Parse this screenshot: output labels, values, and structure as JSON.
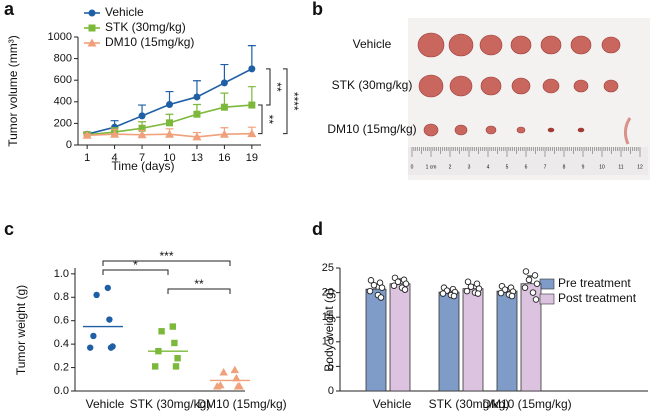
{
  "chart_data": [
    {
      "type": "line",
      "panel": "a",
      "xlabel": "Time (days)",
      "ylabel": "Tumor volume (mm³)",
      "x": [
        1,
        4,
        7,
        10,
        13,
        16,
        19
      ],
      "xlim": [
        0,
        20
      ],
      "xticks": [
        1,
        4,
        7,
        10,
        13,
        16,
        19
      ],
      "ylim": [
        0,
        1000
      ],
      "yticks": [
        0,
        200,
        400,
        600,
        800,
        1000
      ],
      "series": [
        {
          "name": "Vehicle",
          "color": "#1f5fa6",
          "marker": "circle",
          "values": [
            100,
            165,
            270,
            375,
            445,
            575,
            705
          ],
          "errors": [
            20,
            60,
            100,
            120,
            150,
            170,
            215
          ]
        },
        {
          "name": "STK (30mg/kg)",
          "color": "#7cb83a",
          "marker": "square",
          "values": [
            95,
            120,
            155,
            205,
            285,
            350,
            370
          ],
          "errors": [
            15,
            40,
            60,
            80,
            90,
            130,
            170
          ]
        },
        {
          "name": "DM10 (15mg/kg)",
          "color": "#f0a07a",
          "marker": "triangle",
          "values": [
            90,
            100,
            95,
            100,
            75,
            100,
            105
          ],
          "errors": [
            10,
            45,
            40,
            50,
            40,
            60,
            60
          ]
        }
      ],
      "annotations": [
        "**",
        "****",
        "**"
      ]
    },
    {
      "type": "image",
      "panel": "b",
      "labels": [
        "Vehicle",
        "STK (30mg/kg)",
        "DM10 (15mg/kg)"
      ],
      "ruler_labels": [
        "0",
        "1 cm",
        "2",
        "3",
        "4",
        "5",
        "6",
        "7",
        "8",
        "9",
        "10",
        "11",
        "12"
      ]
    },
    {
      "type": "strip",
      "panel": "c",
      "ylabel": "Tumor weight (g)",
      "categories": [
        "Vehicle",
        "STK (30mg/kg)",
        "DM10 (15mg/kg)"
      ],
      "ylim": [
        0,
        1.05
      ],
      "yticks": [
        {
          "value": 0,
          "label": "0.0"
        },
        0.2,
        0.4,
        0.6,
        0.8,
        {
          "value": 1,
          "label": "1.0"
        }
      ],
      "series": [
        {
          "name": "Vehicle",
          "color": "#1f5fa6",
          "marker": "circle",
          "values": [
            0.88,
            0.82,
            0.61,
            0.47,
            0.38,
            0.37,
            0.37
          ],
          "mean": 0.55
        },
        {
          "name": "STK (30mg/kg)",
          "color": "#7cb83a",
          "marker": "square",
          "values": [
            0.55,
            0.51,
            0.41,
            0.34,
            0.28,
            0.21,
            0.21
          ],
          "mean": 0.34
        },
        {
          "name": "DM10 (15mg/kg)",
          "color": "#f0a07a",
          "marker": "triangle",
          "values": [
            0.18,
            0.16,
            0.11,
            0.05,
            0.04,
            0.04,
            0.04
          ],
          "mean": 0.09
        }
      ],
      "annotations": [
        "***",
        "*",
        "**"
      ]
    },
    {
      "type": "bar",
      "panel": "d",
      "ylabel": "Body weight (g)",
      "categories": [
        "Vehicle",
        "STK (30mg/kg)",
        "DM10 (15mg/kg)"
      ],
      "ylim": [
        0,
        25
      ],
      "yticks": [
        0,
        5,
        10,
        15,
        20,
        25
      ],
      "legend": "top-right",
      "series": [
        {
          "name": "Pre treatment",
          "color": "#7f9cc9",
          "values": [
            20.7,
            20.1,
            20.3
          ],
          "errors": [
            1.0,
            0.6,
            0.7
          ],
          "points": [
            [
              22.5,
              22,
              21.5,
              21,
              20.3,
              19.5,
              19
            ],
            [
              21,
              20.7,
              20.4,
              20.1,
              19.8,
              19.5,
              19.3
            ],
            [
              21.3,
              21,
              20.6,
              20.2,
              19.9,
              19.6,
              19.3
            ]
          ]
        },
        {
          "name": "Post treatment",
          "color": "#dcc3e0",
          "values": [
            21.8,
            20.8,
            21.8
          ],
          "errors": [
            1.0,
            0.8,
            1.6
          ],
          "points": [
            [
              23,
              22.6,
              22.2,
              21.8,
              21.4,
              21,
              20.6
            ],
            [
              22.2,
              21.8,
              21.2,
              20.8,
              20.3,
              20,
              19.8
            ],
            [
              24.3,
              23.5,
              22.6,
              21.8,
              21,
              20,
              18.6
            ]
          ]
        }
      ]
    }
  ]
}
